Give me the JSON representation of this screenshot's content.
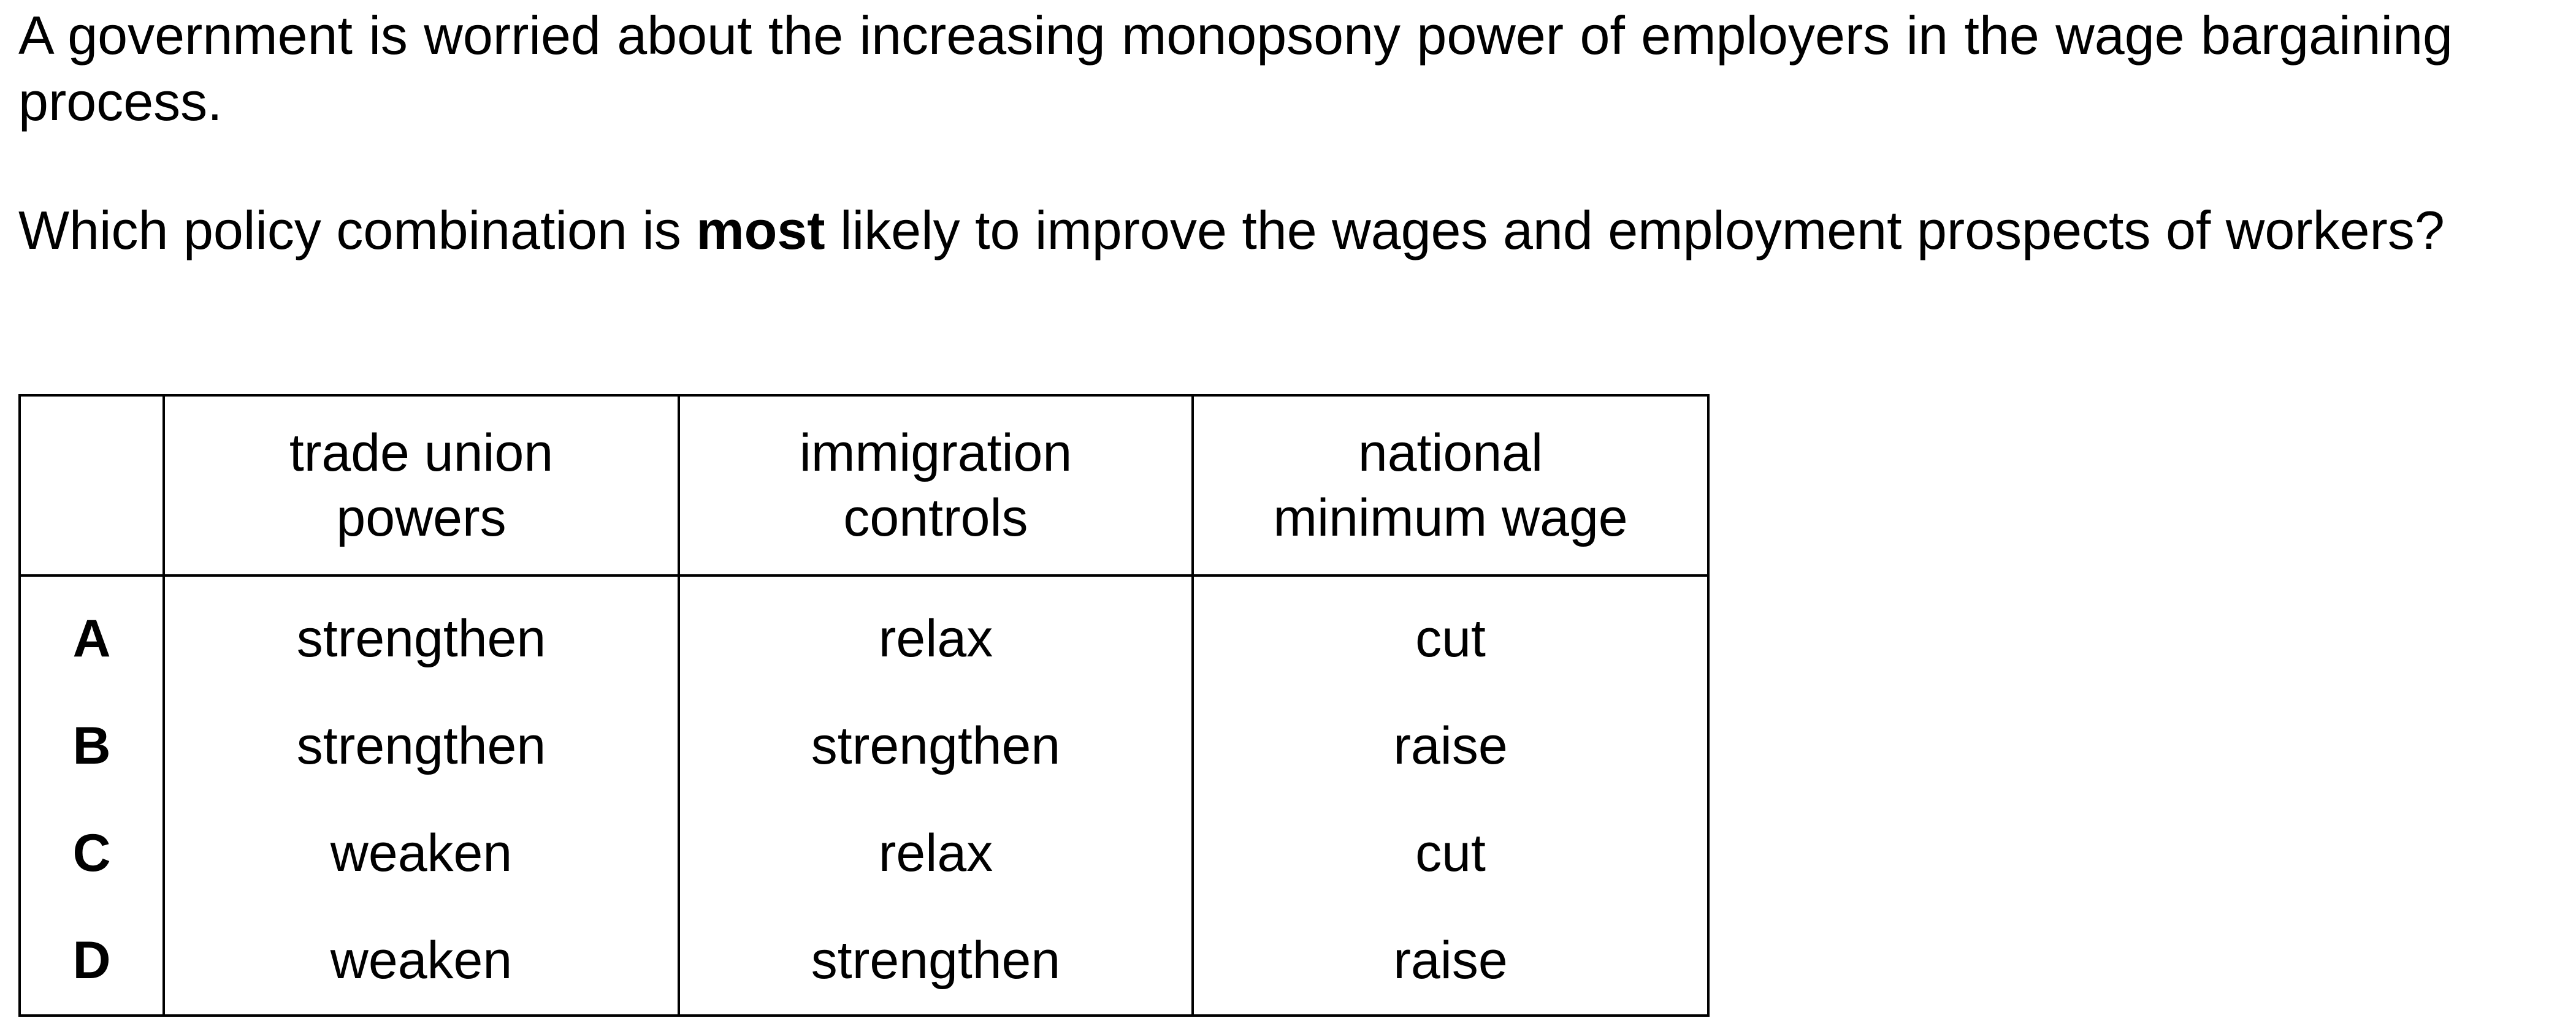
{
  "question": {
    "intro": "A government is worried about the increasing monopsony power of employers in the wage bargaining process.",
    "prompt_before": "Which policy combination is ",
    "prompt_bold": "most",
    "prompt_after": " likely to improve the wages and employment prospects of workers?"
  },
  "table": {
    "headers": {
      "col1_line1": "trade union",
      "col1_line2": "powers",
      "col2_line1": "immigration",
      "col2_line2": "controls",
      "col3_line1": "national",
      "col3_line2": "minimum wage"
    },
    "rows": [
      {
        "option": "A",
        "trade_union_powers": "strengthen",
        "immigration_controls": "relax",
        "national_minimum_wage": "cut"
      },
      {
        "option": "B",
        "trade_union_powers": "strengthen",
        "immigration_controls": "strengthen",
        "national_minimum_wage": "raise"
      },
      {
        "option": "C",
        "trade_union_powers": "weaken",
        "immigration_controls": "relax",
        "national_minimum_wage": "cut"
      },
      {
        "option": "D",
        "trade_union_powers": "weaken",
        "immigration_controls": "strengthen",
        "national_minimum_wage": "raise"
      }
    ]
  }
}
